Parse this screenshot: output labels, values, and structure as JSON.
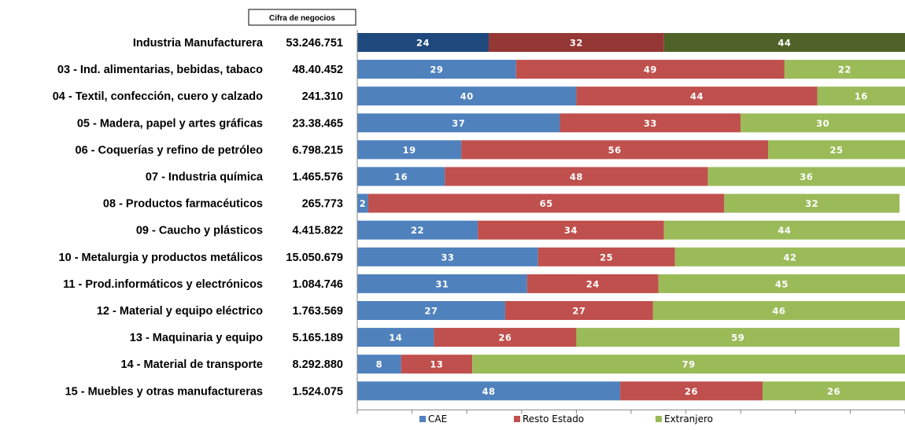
{
  "chart_data": {
    "type": "bar",
    "orientation": "horizontal",
    "stacked": true,
    "value_header": "Cifra de negocios",
    "categories": [
      "Industria Manufacturera",
      "03 - Ind. alimentarias, bebidas, tabaco",
      "04 - Textil, confección, cuero y calzado",
      "05 - Madera, papel y artes gráficas",
      "06 - Coquerías y refino de petróleo",
      "07 - Industria química",
      "08 - Productos farmacéuticos",
      "09 - Caucho y plásticos",
      "10 - Metalurgia y productos metálicos",
      "11 - Prod.informáticos y electrónicos",
      "12 - Material y equipo eléctrico",
      "13 - Maquinaria y equipo",
      "14 - Material de transporte",
      "15 - Muebles y otras manufactureras"
    ],
    "cifra_negocios": [
      "53.246.751",
      "48.40.452",
      "241.310",
      "23.38.465",
      "6.798.215",
      "1.465.576",
      "265.773",
      "4.415.822",
      "15.050.679",
      "1.084.746",
      "1.763.569",
      "5.165.189",
      "8.292.880",
      "1.524.075"
    ],
    "series": [
      {
        "name": "CAE",
        "color": "#4F81BD",
        "highlight_color": "#1F497D",
        "values": [
          24,
          29,
          40,
          37,
          19,
          16,
          2,
          22,
          33,
          31,
          27,
          14,
          8,
          48
        ]
      },
      {
        "name": "Resto Estado",
        "color": "#C0504D",
        "highlight_color": "#953735",
        "values": [
          32,
          49,
          44,
          33,
          56,
          48,
          65,
          34,
          25,
          24,
          27,
          26,
          13,
          26
        ]
      },
      {
        "name": "Extranjero",
        "color": "#9BBB59",
        "highlight_color": "#4F6228",
        "values": [
          44,
          22,
          16,
          30,
          25,
          36,
          32,
          44,
          42,
          45,
          46,
          59,
          79,
          26
        ]
      }
    ],
    "xlim": [
      0,
      100
    ],
    "legend_position": "bottom",
    "grid": false
  }
}
